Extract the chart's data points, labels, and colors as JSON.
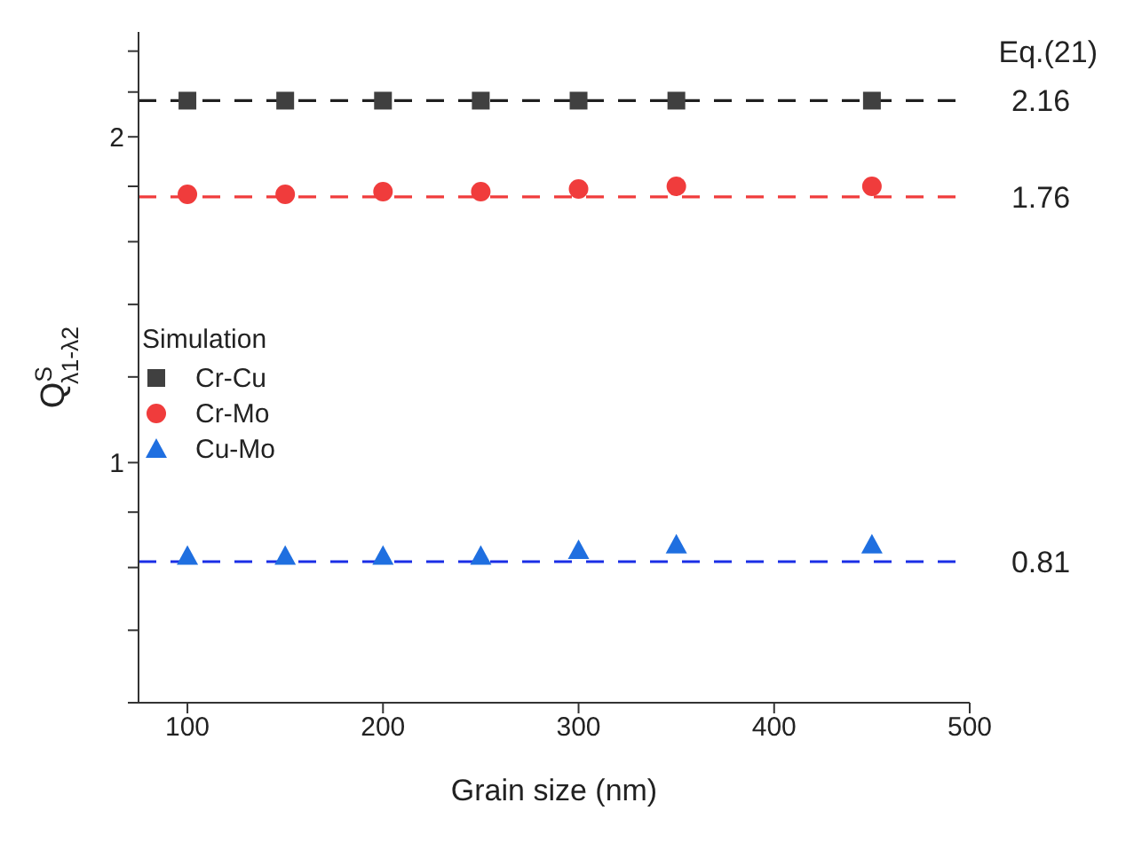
{
  "chart_data": {
    "type": "scatter",
    "xlabel": "Grain size (nm)",
    "ylabel": "Q$^{S}$$_{λ1-λ2}$",
    "legend_title": "Simulation",
    "legend": "left",
    "log": "y",
    "x": [
      100,
      150,
      200,
      250,
      300,
      350,
      450
    ],
    "xlim": [
      75,
      500
    ],
    "xticks": [
      100,
      200,
      300,
      400,
      500
    ],
    "ylim": [
      0.6,
      2.5
    ],
    "yticks": [
      {
        "value": 0.6,
        "label": null
      },
      {
        "value": 0.7,
        "label": null
      },
      {
        "value": 0.8,
        "label": null
      },
      {
        "value": 0.9,
        "label": null
      },
      1,
      {
        "value": 1.2,
        "label": null
      },
      {
        "value": 1.4,
        "label": null
      },
      {
        "value": 1.6,
        "label": null
      },
      {
        "value": 1.8,
        "label": null
      },
      2,
      {
        "value": 2.2,
        "label": null
      },
      {
        "value": 2.4,
        "label": null
      }
    ],
    "series": [
      {
        "name": "Cr-Cu",
        "color": "#404040",
        "marker": "square",
        "values": [
          2.16,
          2.16,
          2.16,
          2.16,
          2.16,
          2.16,
          2.16
        ]
      },
      {
        "name": "Cr-Mo",
        "color": "#f03c3c",
        "marker": "circle",
        "values": [
          1.77,
          1.77,
          1.78,
          1.78,
          1.79,
          1.8,
          1.8
        ]
      },
      {
        "name": "Cu-Mo",
        "color": "#1f6fe0",
        "marker": "triangle",
        "values": [
          0.82,
          0.82,
          0.82,
          0.82,
          0.83,
          0.84,
          0.84
        ]
      }
    ],
    "ref_lines": [
      {
        "axis": "y",
        "value": 2.16,
        "label": "2.16",
        "color": "#202020",
        "line_style": "dashed"
      },
      {
        "axis": "y",
        "value": 1.76,
        "label": "1.76",
        "color": "#f03c3c",
        "line_style": "dashed"
      },
      {
        "axis": "y",
        "value": 0.81,
        "label": "0.81",
        "color": "#1a2ee6",
        "line_style": "dashed"
      }
    ],
    "annotations": [
      "Eq.(21)"
    ]
  }
}
